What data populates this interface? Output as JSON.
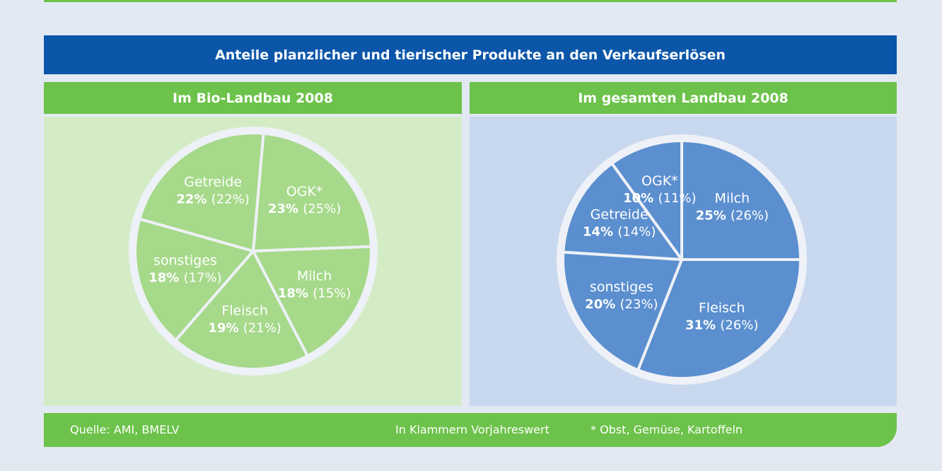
{
  "title": "Anteile planzlicher und tierischer Produkte an den Verkaufserlösen",
  "footer": {
    "source": "Quelle: AMI, BMELV",
    "note": "In Klammern Vorjahreswert",
    "explanation": "* Obst, Gemüse, Kartoffeln"
  },
  "colors": {
    "bio_fill": "#a6d98a",
    "bio_panel": "#d3ecc6",
    "gesamt_fill": "#5b8fcf",
    "gesamt_panel": "#c8d8ee",
    "header_green": "#6cc24a",
    "title_blue": "#0b56a9"
  },
  "chart_data": [
    {
      "type": "pie",
      "title": "Im Bio-Landbau 2008",
      "labels": [
        "OGK*",
        "Milch",
        "Fleisch",
        "sonstiges",
        "Getreide"
      ],
      "values": [
        23,
        18,
        19,
        18,
        22
      ],
      "previous_year": [
        25,
        15,
        21,
        17,
        22
      ],
      "value_labels": [
        "23%",
        "18%",
        "19%",
        "18%",
        "22%"
      ],
      "previous_labels": [
        "(25%)",
        "(15%)",
        "(21%)",
        "(17%)",
        "(22%)"
      ],
      "unit": "%"
    },
    {
      "type": "pie",
      "title": "Im gesamten Landbau 2008",
      "labels": [
        "Milch",
        "Fleisch",
        "sonstiges",
        "Getreide",
        "OGK*"
      ],
      "values": [
        25,
        31,
        20,
        14,
        10
      ],
      "previous_year": [
        26,
        26,
        23,
        14,
        11
      ],
      "value_labels": [
        "25%",
        "31%",
        "20%",
        "14%",
        "10%"
      ],
      "previous_labels": [
        "(26%)",
        "(26%)",
        "(23%)",
        "(14%)",
        "(11%)"
      ],
      "unit": "%"
    }
  ]
}
